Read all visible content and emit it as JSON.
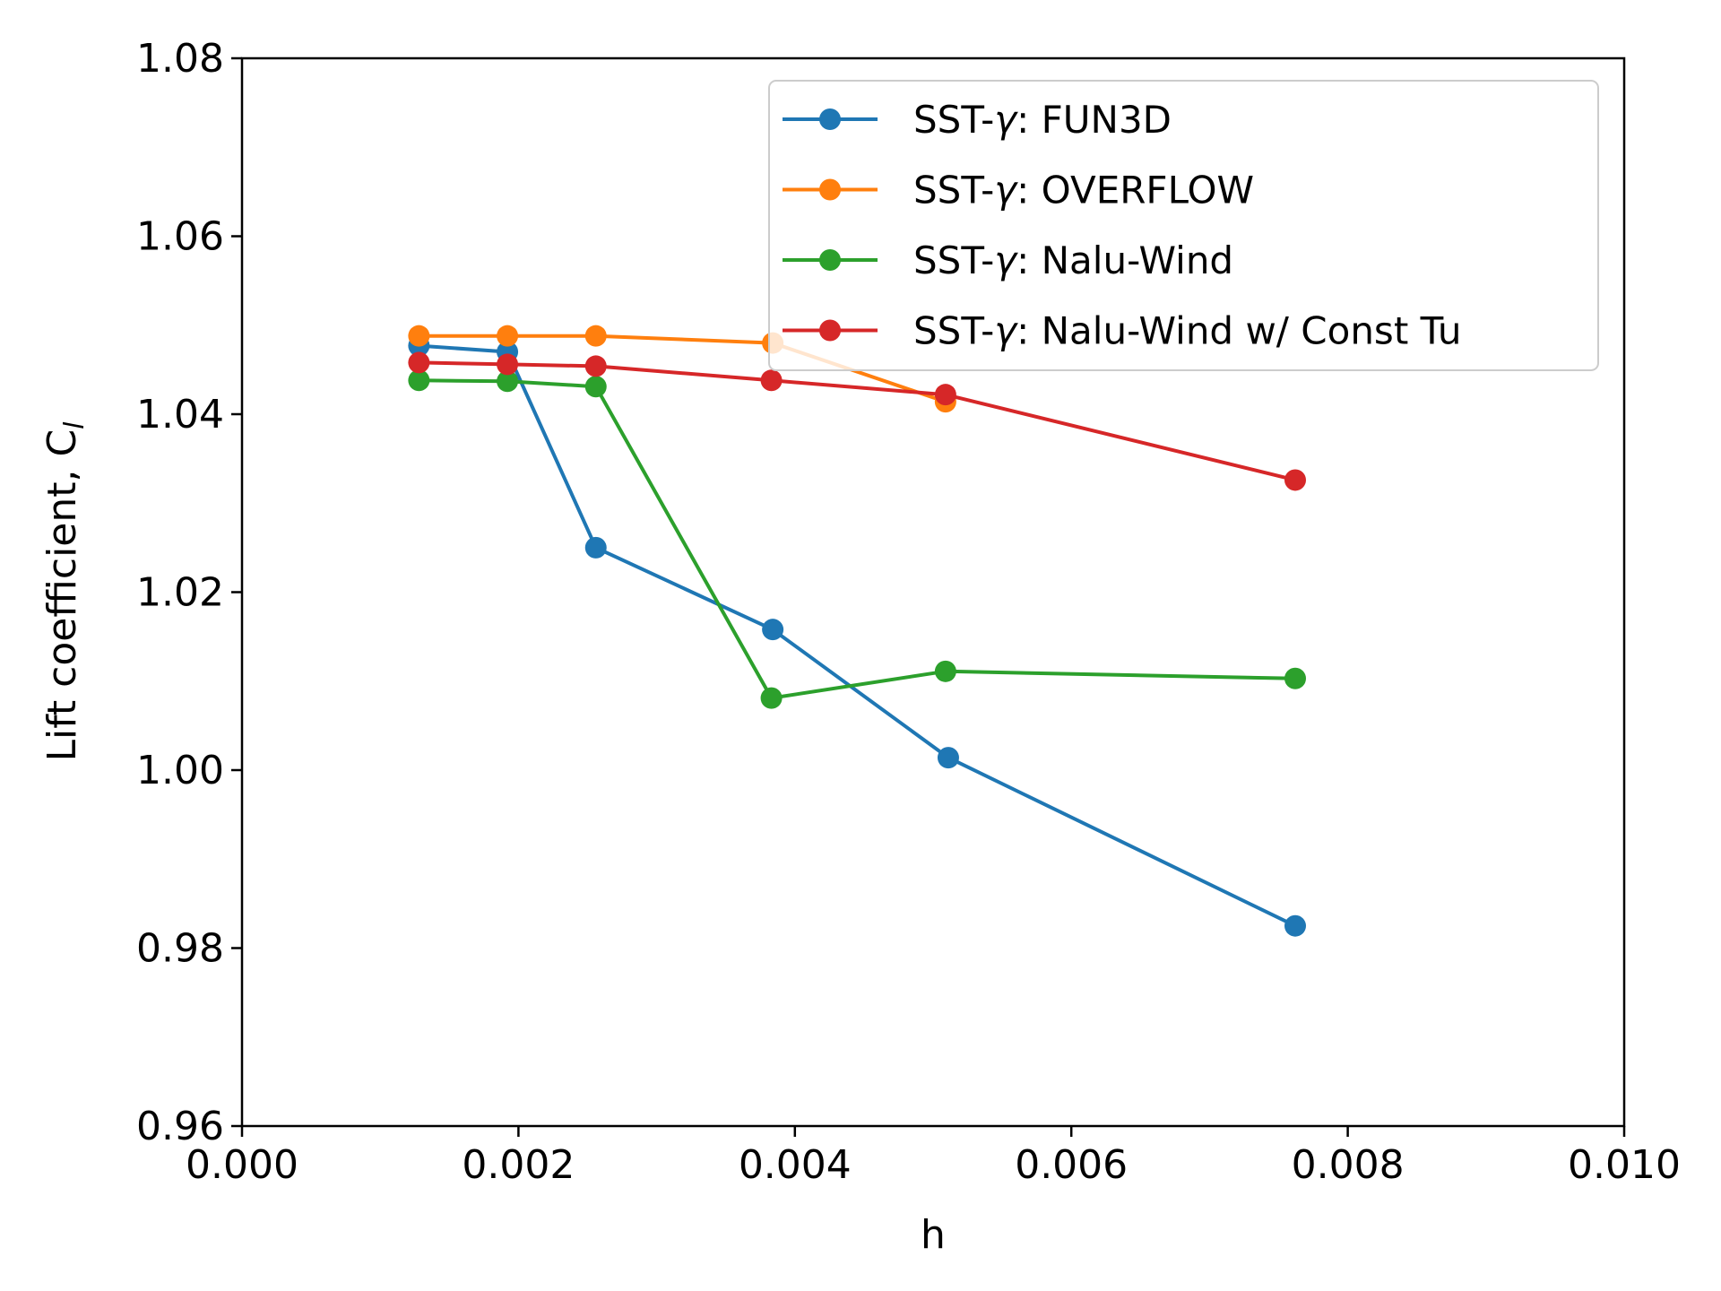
{
  "chart_data": {
    "type": "line",
    "xlabel": "h",
    "ylabel": "Lift coefficient, C",
    "ylabel_subscript": "l",
    "xlim": [
      0.0,
      0.01
    ],
    "ylim": [
      0.96,
      1.08
    ],
    "xticks": [
      "0.000",
      "0.002",
      "0.004",
      "0.006",
      "0.008",
      "0.010"
    ],
    "yticks": [
      "0.96",
      "0.98",
      "1.00",
      "1.02",
      "1.04",
      "1.06",
      "1.08"
    ],
    "grid": false,
    "legend_position": "top-right",
    "series": [
      {
        "name": "SST-γ: FUN3D",
        "name_prefix": "SST-",
        "name_symbol": "γ",
        "name_suffix": ": FUN3D",
        "color": "#1f77b4",
        "x": [
          0.00128,
          0.00192,
          0.00256,
          0.00384,
          0.00511,
          0.00762
        ],
        "y": [
          1.0477,
          1.047,
          1.025,
          1.0158,
          1.0014,
          0.9825
        ]
      },
      {
        "name": "SST-γ: OVERFLOW",
        "name_prefix": "SST-",
        "name_symbol": "γ",
        "name_suffix": ": OVERFLOW",
        "color": "#ff7f0e",
        "x": [
          0.00128,
          0.00192,
          0.00256,
          0.00384,
          0.00509
        ],
        "y": [
          1.0488,
          1.0488,
          1.0488,
          1.048,
          1.0414
        ]
      },
      {
        "name": "SST-γ: Nalu-Wind",
        "name_prefix": "SST-",
        "name_symbol": "γ",
        "name_suffix": ": Nalu-Wind",
        "color": "#2ca02c",
        "x": [
          0.00128,
          0.00192,
          0.00256,
          0.00383,
          0.00509,
          0.00762
        ],
        "y": [
          1.0438,
          1.0437,
          1.0431,
          1.0081,
          1.0111,
          1.0103
        ]
      },
      {
        "name": "SST-γ: Nalu-Wind w/ Const Tu",
        "name_prefix": "SST-",
        "name_symbol": "γ",
        "name_suffix": ": Nalu-Wind w/ Const Tu",
        "color": "#d62728",
        "x": [
          0.00128,
          0.00192,
          0.00256,
          0.00383,
          0.00509,
          0.00762
        ],
        "y": [
          1.0458,
          1.0456,
          1.0454,
          1.0438,
          1.0422,
          1.0326
        ]
      }
    ]
  }
}
